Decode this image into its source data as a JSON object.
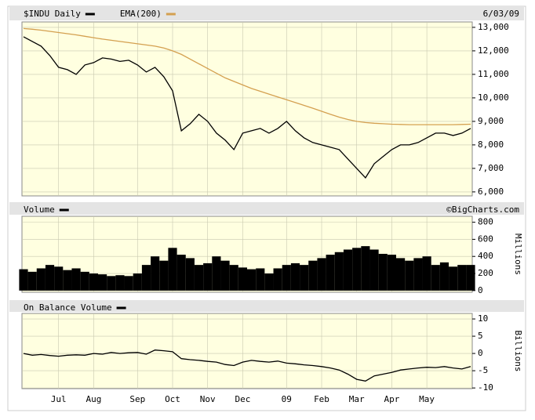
{
  "chart_data": [
    {
      "type": "line",
      "annotation": "6/03/09",
      "series": [
        {
          "name": "$INDU Daily",
          "color": "#000000",
          "values": [
            12600,
            12400,
            12200,
            11800,
            11300,
            11200,
            11000,
            11400,
            11500,
            11700,
            11650,
            11550,
            11600,
            11400,
            11100,
            11300,
            10900,
            10300,
            8600,
            8900,
            9300,
            9000,
            8500,
            8200,
            7800,
            8500,
            8600,
            8700,
            8500,
            8700,
            9000,
            8600,
            8300,
            8100,
            8000,
            7900,
            7800,
            7400,
            7000,
            6600,
            7200,
            7500,
            7800,
            8000,
            8000,
            8100,
            8300,
            8500,
            8500,
            8400,
            8500,
            8700
          ]
        },
        {
          "name": "EMA(200)",
          "color": "#d4a050",
          "values": [
            12950,
            12920,
            12880,
            12830,
            12780,
            12730,
            12680,
            12620,
            12560,
            12500,
            12450,
            12400,
            12350,
            12300,
            12250,
            12200,
            12120,
            12000,
            11850,
            11650,
            11450,
            11250,
            11050,
            10850,
            10700,
            10550,
            10400,
            10280,
            10160,
            10040,
            9920,
            9800,
            9680,
            9560,
            9430,
            9300,
            9180,
            9080,
            9000,
            8950,
            8920,
            8900,
            8880,
            8870,
            8860,
            8860,
            8860,
            8860,
            8860,
            8860,
            8870,
            8880
          ]
        }
      ],
      "ylim": [
        5830,
        13230
      ],
      "yticks": [
        {
          "value": 6000,
          "label": "6,000"
        },
        {
          "value": 7000,
          "label": "7,000"
        },
        {
          "value": 8000,
          "label": "8,000"
        },
        {
          "value": 9000,
          "label": "9,000"
        },
        {
          "value": 10000,
          "label": "10,000"
        },
        {
          "value": 11000,
          "label": "11,000"
        },
        {
          "value": 12000,
          "label": "12,000"
        },
        {
          "value": 13000,
          "label": "13,000"
        }
      ],
      "grid": true
    },
    {
      "type": "bar",
      "annotation": "©BigCharts.com",
      "ylabel": "Millions",
      "series": [
        {
          "name": "Volume",
          "color": "#000000",
          "values": [
            250,
            220,
            260,
            300,
            280,
            240,
            260,
            220,
            200,
            190,
            170,
            180,
            170,
            200,
            300,
            400,
            350,
            500,
            420,
            380,
            300,
            320,
            400,
            350,
            300,
            270,
            250,
            260,
            200,
            260,
            300,
            320,
            300,
            350,
            380,
            420,
            450,
            480,
            500,
            520,
            480,
            430,
            420,
            380,
            350,
            380,
            400,
            300,
            330,
            280,
            300,
            300
          ]
        }
      ],
      "ylim": [
        -20,
        870
      ],
      "yticks": [
        0,
        200,
        400,
        600,
        800
      ],
      "grid": true
    },
    {
      "type": "line",
      "ylabel": "Billions",
      "categories": [
        null,
        null,
        null,
        null,
        "Jul",
        null,
        null,
        null,
        "Aug",
        null,
        null,
        null,
        null,
        "Sep",
        null,
        null,
        null,
        "Oct",
        null,
        null,
        null,
        "Nov",
        null,
        null,
        null,
        "Dec",
        null,
        null,
        null,
        null,
        "09",
        null,
        null,
        null,
        "Feb",
        null,
        null,
        null,
        "Mar",
        null,
        null,
        null,
        "Apr",
        null,
        null,
        null,
        "May",
        null,
        null,
        null,
        null,
        null
      ],
      "series": [
        {
          "name": "On Balance Volume",
          "color": "#000000",
          "values": [
            0,
            -0.5,
            -0.3,
            -0.6,
            -0.8,
            -0.5,
            -0.4,
            -0.5,
            0,
            -0.2,
            0.3,
            0,
            0.2,
            0.3,
            -0.2,
            1,
            0.8,
            0.5,
            -1.5,
            -1.8,
            -2,
            -2.3,
            -2.5,
            -3.2,
            -3.5,
            -2.5,
            -2,
            -2.3,
            -2.5,
            -2.2,
            -2.8,
            -3,
            -3.3,
            -3.5,
            -3.8,
            -4.2,
            -4.8,
            -6,
            -7.5,
            -8,
            -6.5,
            -6,
            -5.5,
            -4.8,
            -4.5,
            -4.2,
            -4,
            -4.1,
            -3.8,
            -4.2,
            -4.5,
            -3.8
          ]
        }
      ],
      "ylim": [
        -10.2,
        11.6
      ],
      "yticks": [
        -10,
        -5,
        0,
        5,
        10
      ],
      "grid": true
    }
  ]
}
